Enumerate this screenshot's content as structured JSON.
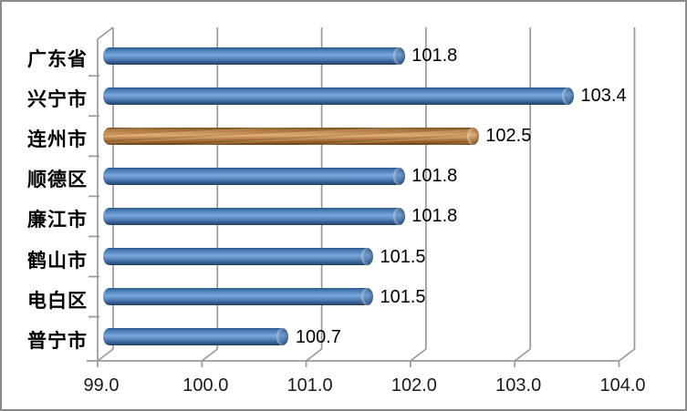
{
  "chart_data": {
    "type": "bar",
    "orientation": "horizontal",
    "style": "3d-cylinder",
    "title": "",
    "xlabel": "",
    "ylabel": "",
    "categories": [
      "广东省",
      "兴宁市",
      "连州市",
      "顺德区",
      "廉江市",
      "鹤山市",
      "电白区",
      "普宁市"
    ],
    "values": [
      101.8,
      103.4,
      102.5,
      101.8,
      101.8,
      101.5,
      101.5,
      100.7
    ],
    "data_labels": [
      "101.8",
      "103.4",
      "102.5",
      "101.8",
      "101.8",
      "101.5",
      "101.5",
      "100.7"
    ],
    "highlighted_category": "连州市",
    "highlighted_index": 2,
    "x_ticks": [
      "99.0",
      "100.0",
      "101.0",
      "102.0",
      "103.0",
      "104.0"
    ],
    "x_tick_values": [
      99.0,
      100.0,
      101.0,
      102.0,
      103.0,
      104.0
    ],
    "xlim": [
      99.0,
      104.0
    ],
    "grid": true,
    "legend": false,
    "colors": {
      "bar": "#4f81bd",
      "highlighted_bar": "#c08a52",
      "gridline": "#999999",
      "axis_line": "#999999",
      "text": "#000000",
      "background": "#ffffff",
      "border": "#8a8a8a"
    }
  }
}
